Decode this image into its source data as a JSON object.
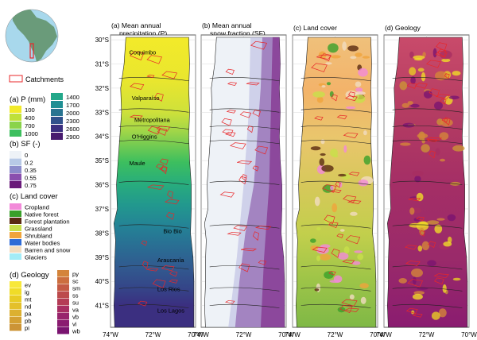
{
  "inset": {
    "legend_label": "Catchments",
    "colors": {
      "ocean": "#a8d8ec",
      "land": "#6a9b7a",
      "outline": "#e8272a"
    }
  },
  "legends": {
    "precip": {
      "title": "(a) P (mm)",
      "items": [
        {
          "label": "100",
          "color": "#f2ea2a"
        },
        {
          "label": "400",
          "color": "#bfe03a"
        },
        {
          "label": "700",
          "color": "#8ad34a"
        },
        {
          "label": "1000",
          "color": "#3dbf5e"
        },
        {
          "label": "1400",
          "color": "#23a88a"
        },
        {
          "label": "1700",
          "color": "#1f8f93"
        },
        {
          "label": "2000",
          "color": "#297491"
        },
        {
          "label": "2300",
          "color": "#31518c"
        },
        {
          "label": "2600",
          "color": "#3b2f80"
        },
        {
          "label": "2900",
          "color": "#481b6f"
        }
      ]
    },
    "snow": {
      "title": "(b) SF (-)",
      "items": [
        {
          "label": "0",
          "color": "#eef2f7"
        },
        {
          "label": "0.2",
          "color": "#b7c9e6"
        },
        {
          "label": "0.35",
          "color": "#8c8ccb"
        },
        {
          "label": "0.55",
          "color": "#8a4fae"
        },
        {
          "label": "0.75",
          "color": "#6a1a7a"
        }
      ]
    },
    "landcover": {
      "title": "(c) Land cover",
      "items": [
        {
          "label": "Cropland",
          "color": "#f28ad9"
        },
        {
          "label": "Native forest",
          "color": "#3aa02a"
        },
        {
          "label": "Forest plantation",
          "color": "#5a2a12"
        },
        {
          "label": "Grassland",
          "color": "#c8e04a"
        },
        {
          "label": "Shrubland",
          "color": "#f0a43c"
        },
        {
          "label": "Water bodies",
          "color": "#2e6bd6"
        },
        {
          "label": "Barren and snow",
          "color": "#f1dcc0"
        },
        {
          "label": "Glaciers",
          "color": "#a3ecf7"
        }
      ]
    },
    "geology": {
      "title": "(d) Geology",
      "col1": [
        {
          "label": "ev",
          "color": "#f8e83a"
        },
        {
          "label": "ig",
          "color": "#f0dc28"
        },
        {
          "label": "mt",
          "color": "#e8cc24"
        },
        {
          "label": "nd",
          "color": "#e4c02a"
        },
        {
          "label": "pa",
          "color": "#dcb030"
        },
        {
          "label": "pb",
          "color": "#d4a032"
        },
        {
          "label": "pi",
          "color": "#cc9436"
        }
      ],
      "col2": [
        {
          "label": "py",
          "color": "#d4843a"
        },
        {
          "label": "sc",
          "color": "#cc6e3e"
        },
        {
          "label": "sm",
          "color": "#c45a44"
        },
        {
          "label": "ss",
          "color": "#bc4a4c"
        },
        {
          "label": "su",
          "color": "#b43c56"
        },
        {
          "label": "va",
          "color": "#a82e62"
        },
        {
          "label": "vb",
          "color": "#98246c"
        },
        {
          "label": "vi",
          "color": "#8a1c70"
        },
        {
          "label": "wb",
          "color": "#7a1470"
        }
      ]
    }
  },
  "panels": [
    {
      "title_line1": "(a) Mean annual",
      "title_line2": "precipitation (P)"
    },
    {
      "title_line1": "(b) Mean annual",
      "title_line2": "snow fraction (SF)"
    },
    {
      "title_line1": "(c) Land cover",
      "title_line2": ""
    },
    {
      "title_line1": "(d) Geology",
      "title_line2": ""
    }
  ],
  "lat_labels": [
    "30°S",
    "31°S",
    "32°S",
    "33°S",
    "34°S",
    "35°S",
    "36°S",
    "37°S",
    "38°S",
    "39°S",
    "40°S",
    "41°S"
  ],
  "lon_labels": [
    "74°W",
    "72°W",
    "70°W"
  ],
  "regions": [
    "Coquimbo",
    "Valparaíso",
    "Metropolitana",
    "O'Higgins",
    "Maule",
    "Bio Bio",
    "Araucanía",
    "Los Rios",
    "Los Lagos"
  ],
  "colors": {
    "catchment": "#e8272a",
    "boundary": "#222222",
    "grid": "#cfcfcf"
  }
}
